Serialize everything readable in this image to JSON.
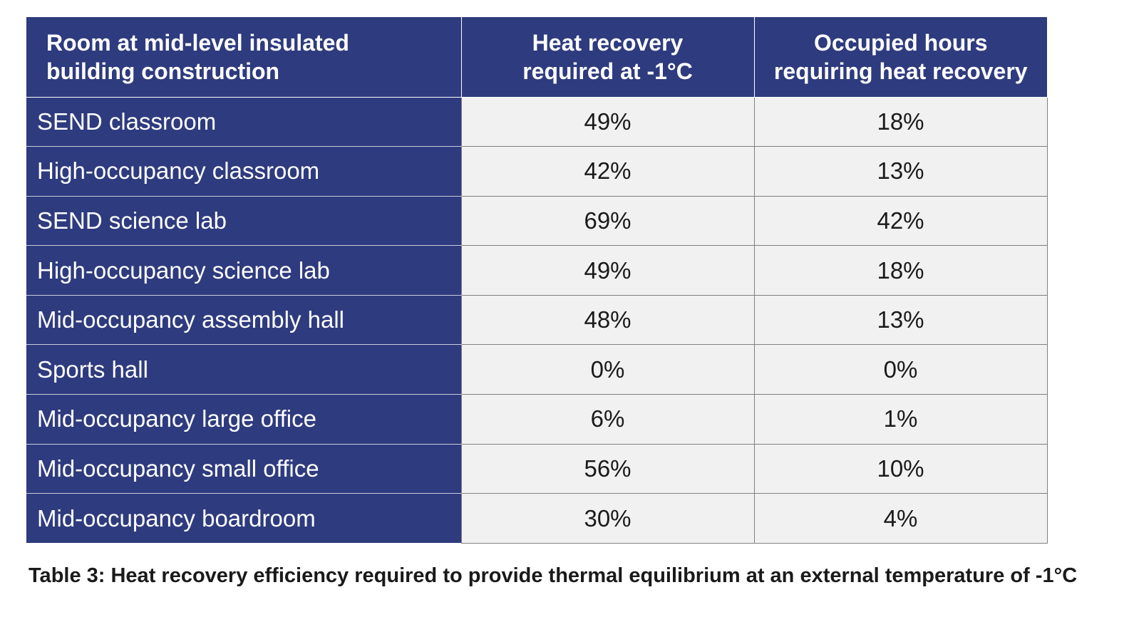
{
  "table": {
    "headers": {
      "room_line1": "Room at mid-level insulated",
      "room_line2": "building construction",
      "heat_line1": "Heat recovery",
      "heat_line2": "required at -1°C",
      "hours_line1": "Occupied hours",
      "hours_line2": "requiring heat recovery"
    },
    "rows": [
      {
        "room": "SEND classroom",
        "heat_recovery": "49%",
        "occupied_hours": "18%"
      },
      {
        "room": "High-occupancy classroom",
        "heat_recovery": "42%",
        "occupied_hours": "13%"
      },
      {
        "room": "SEND science lab",
        "heat_recovery": "69%",
        "occupied_hours": "42%"
      },
      {
        "room": "High-occupancy science lab",
        "heat_recovery": "49%",
        "occupied_hours": "18%"
      },
      {
        "room": "Mid-occupancy assembly hall",
        "heat_recovery": "48%",
        "occupied_hours": "13%"
      },
      {
        "room": "Sports hall",
        "heat_recovery": "0%",
        "occupied_hours": "0%"
      },
      {
        "room": "Mid-occupancy large office",
        "heat_recovery": "6%",
        "occupied_hours": "1%"
      },
      {
        "room": "Mid-occupancy small office",
        "heat_recovery": "56%",
        "occupied_hours": "10%"
      },
      {
        "room": "Mid-occupancy boardroom",
        "heat_recovery": "30%",
        "occupied_hours": "4%"
      }
    ]
  },
  "caption": "Table 3: Heat recovery efficiency required to provide thermal equilibrium at an external temperature of -1°C",
  "colors": {
    "header_bg": "#2e3b7e",
    "cell_bg": "#f1f1f1",
    "text": "#1a1a1a"
  }
}
